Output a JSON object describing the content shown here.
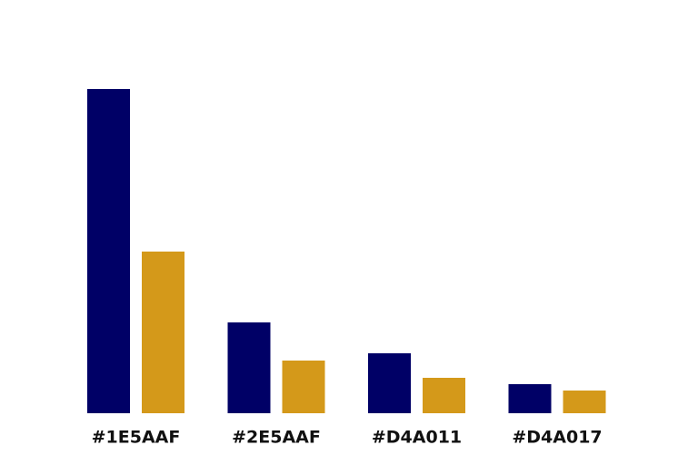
{
  "chart_data": {
    "type": "bar",
    "categories": [
      "#1E5AAF",
      "#2E5AAF",
      "#D4A011",
      "#D4A017"
    ],
    "series": [
      {
        "color": "#000066",
        "values": [
          357,
          100,
          66,
          32
        ]
      },
      {
        "color": "#d4991a",
        "values": [
          178,
          58,
          39,
          25
        ]
      }
    ]
  }
}
